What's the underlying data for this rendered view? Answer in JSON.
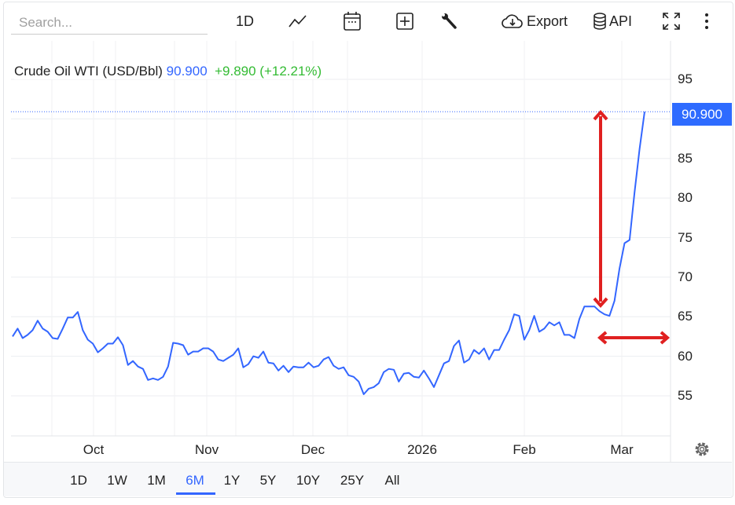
{
  "toolbar": {
    "search_placeholder": "Search...",
    "interval_label": "1D",
    "export_label": "Export",
    "api_label": "API"
  },
  "legend": {
    "name": "Crude Oil WTI (USD/Bbl)",
    "price": "90.900",
    "change": "+9.890 (+12.21%)"
  },
  "price_tag": "90.900",
  "colors": {
    "line": "#3366ff",
    "accent": "#2e6bff",
    "change": "#33bb33",
    "annotation": "#e02020"
  },
  "ranges": [
    {
      "label": "1D",
      "active": false
    },
    {
      "label": "1W",
      "active": false
    },
    {
      "label": "1M",
      "active": false
    },
    {
      "label": "6M",
      "active": true
    },
    {
      "label": "1Y",
      "active": false
    },
    {
      "label": "5Y",
      "active": false
    },
    {
      "label": "10Y",
      "active": false
    },
    {
      "label": "25Y",
      "active": false
    },
    {
      "label": "All",
      "active": false
    }
  ],
  "chart_data": {
    "type": "line",
    "title": "Crude Oil WTI (USD/Bbl)",
    "x_ticks": [
      "Oct",
      "Nov",
      "Dec",
      "2026",
      "Feb",
      "Mar"
    ],
    "y_ticks": [
      55,
      60,
      65,
      70,
      75,
      80,
      85,
      90,
      95
    ],
    "y_tick_labels": [
      "55",
      "60",
      "65",
      "70",
      "75",
      "80",
      "85",
      "95"
    ],
    "ylim": [
      50,
      100
    ],
    "last_value": 90.9,
    "grid": true,
    "axis_position": "right",
    "series": [
      {
        "name": "Crude Oil WTI",
        "values": [
          62.5,
          63.5,
          62.3,
          62.7,
          63.3,
          64.5,
          63.5,
          63.1,
          62.3,
          62.2,
          63.5,
          64.9,
          64.9,
          65.6,
          63.3,
          62.1,
          61.6,
          60.5,
          61.0,
          61.6,
          61.6,
          62.4,
          61.4,
          58.9,
          59.4,
          58.7,
          58.4,
          57.0,
          57.2,
          57.0,
          57.4,
          58.7,
          61.7,
          61.6,
          61.4,
          60.2,
          60.6,
          60.6,
          61.0,
          61.0,
          60.6,
          59.6,
          59.4,
          59.8,
          60.2,
          61.0,
          58.6,
          59.0,
          60.0,
          59.8,
          60.6,
          59.2,
          59.1,
          58.2,
          58.8,
          58.0,
          58.7,
          58.6,
          58.6,
          59.2,
          58.6,
          58.8,
          59.6,
          59.9,
          58.8,
          58.4,
          58.6,
          57.6,
          57.4,
          56.8,
          55.2,
          55.9,
          56.1,
          56.6,
          58.0,
          58.4,
          58.3,
          56.8,
          57.8,
          57.9,
          57.4,
          57.3,
          58.2,
          57.2,
          56.1,
          57.6,
          59.1,
          59.4,
          61.3,
          62.0,
          59.2,
          59.6,
          60.8,
          60.3,
          61.0,
          59.6,
          60.8,
          60.8,
          62.1,
          63.3,
          65.3,
          65.1,
          62.1,
          63.3,
          65.1,
          63.1,
          63.5,
          64.3,
          63.9,
          64.3,
          62.7,
          62.7,
          62.3,
          64.7,
          66.3,
          66.3,
          66.3,
          65.7,
          65.3,
          65.1,
          67.0,
          71.1,
          74.3,
          74.7,
          80.7,
          86.2,
          90.9
        ]
      }
    ],
    "annotations": [
      "vertical double arrow from ~66 to ~91",
      "horizontal double arrow at ~62.5"
    ]
  }
}
